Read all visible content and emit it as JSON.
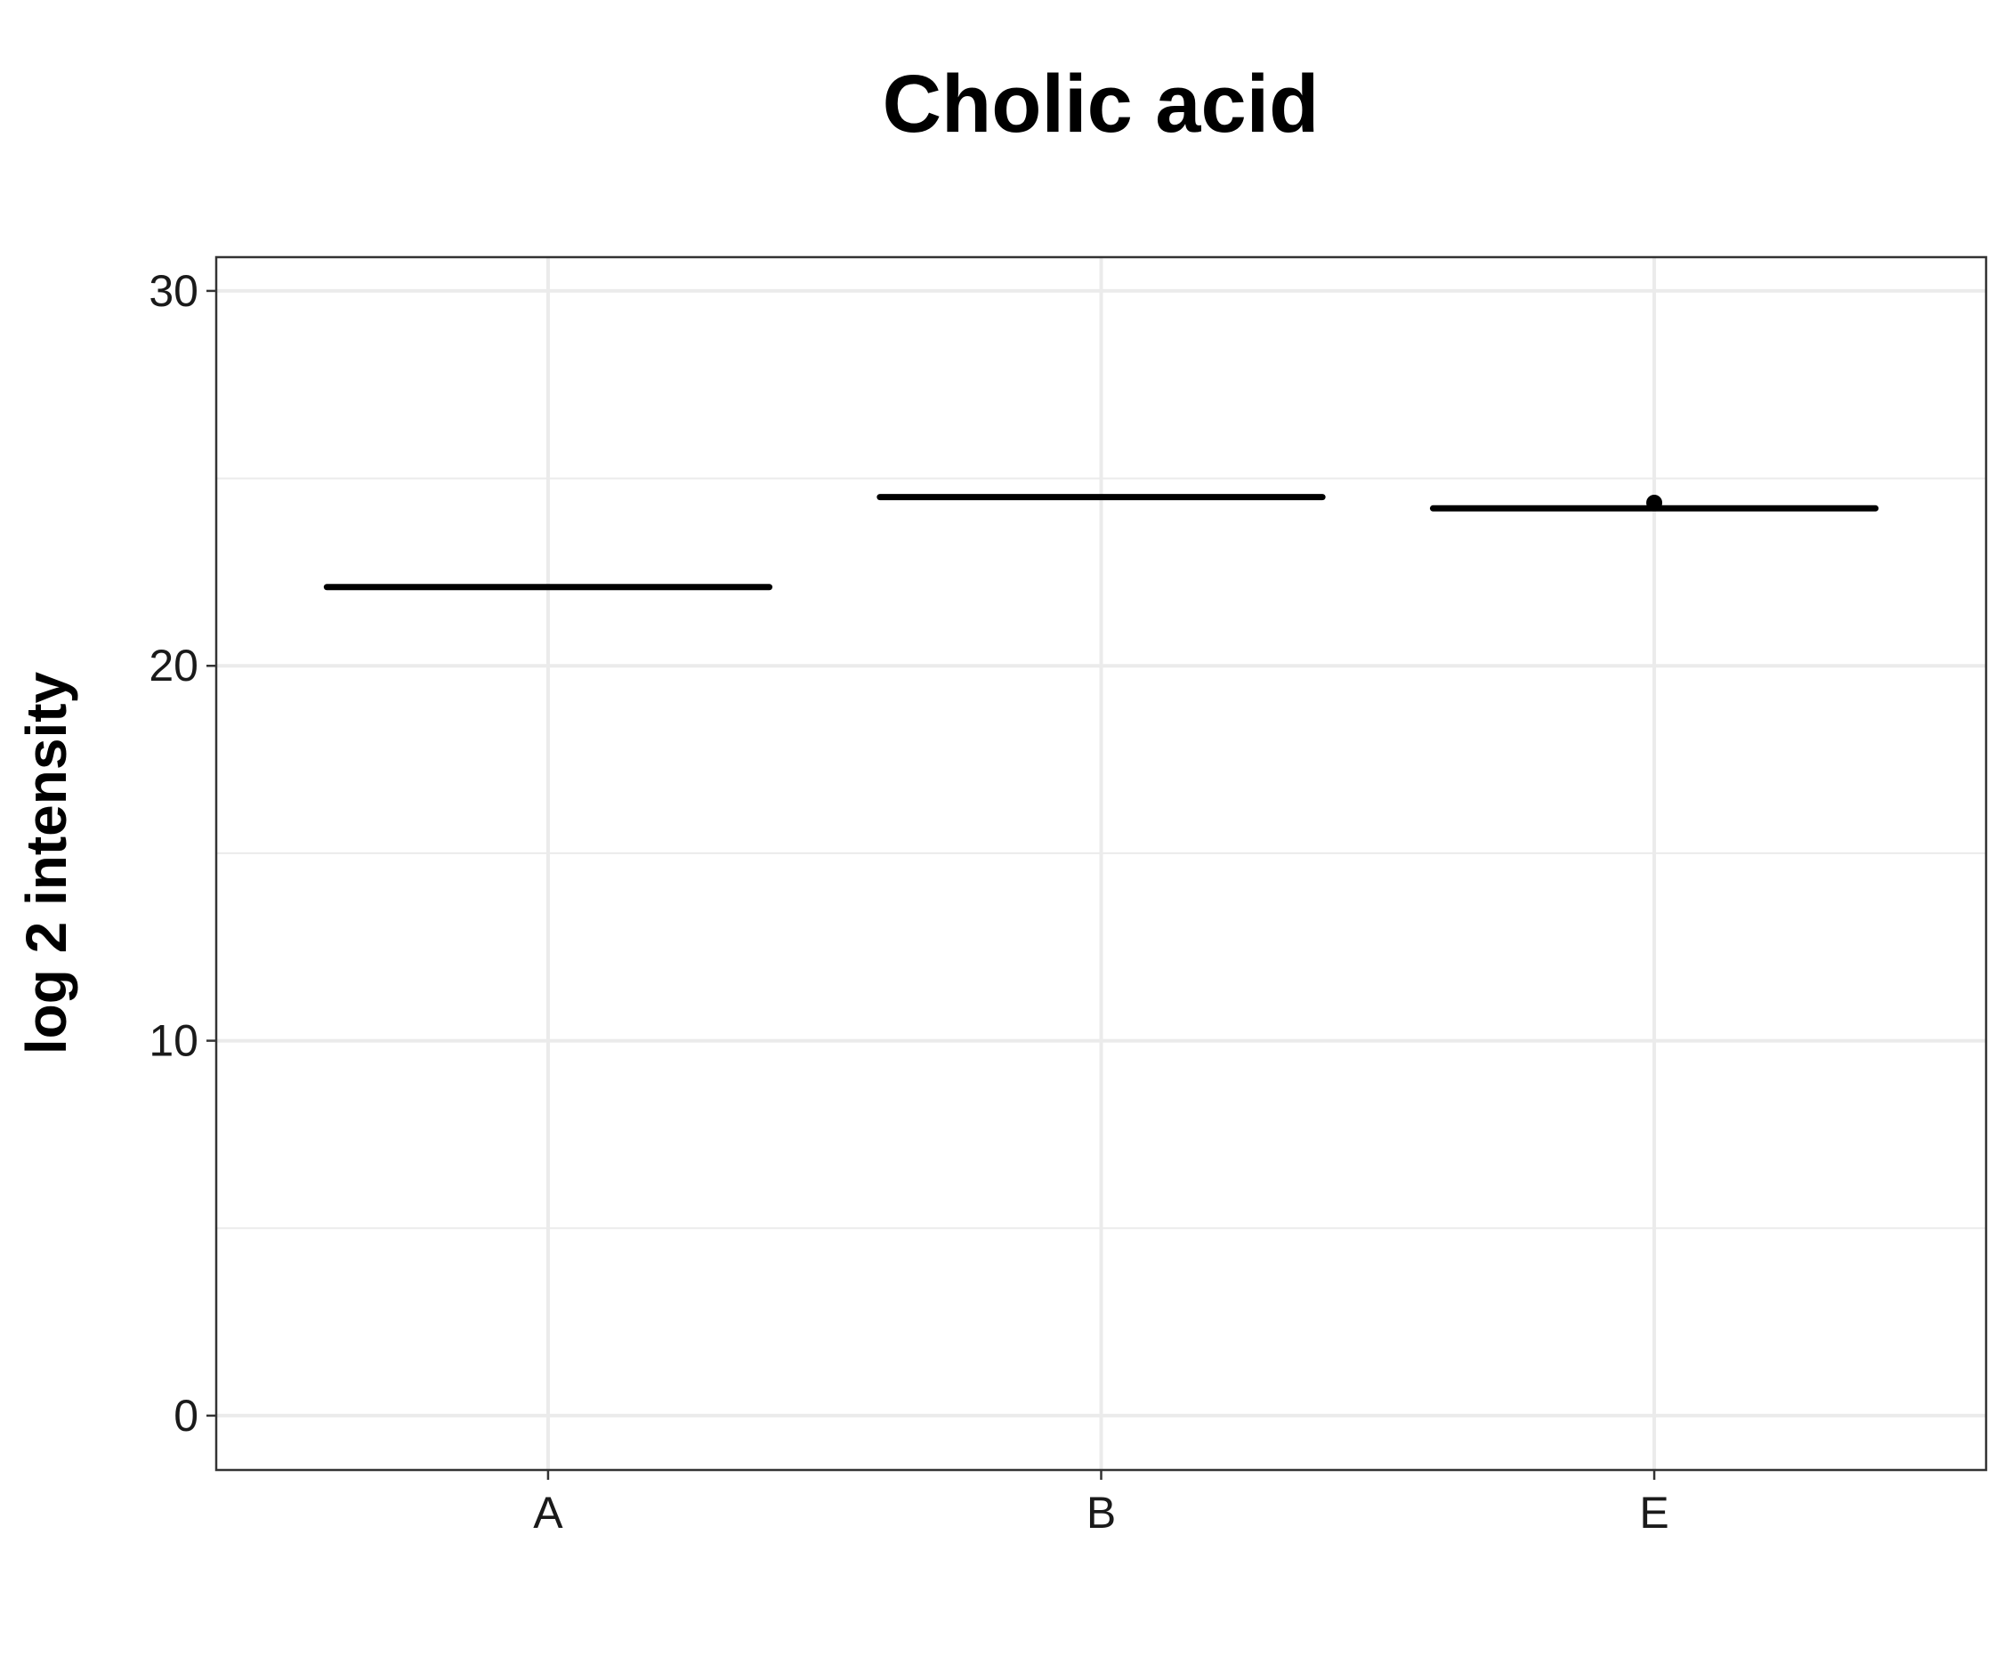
{
  "chart_data": {
    "type": "boxplot",
    "title": "Cholic acid",
    "xlabel": "",
    "ylabel": "log 2 intensity",
    "categories": [
      "A",
      "B",
      "E"
    ],
    "boxes": [
      {
        "category": "A",
        "q1": 22.1,
        "median": 22.1,
        "q3": 22.1,
        "whisker_low": 22.1,
        "whisker_high": 22.1,
        "outliers": []
      },
      {
        "category": "B",
        "q1": 24.5,
        "median": 24.5,
        "q3": 24.5,
        "whisker_low": 24.5,
        "whisker_high": 24.5,
        "outliers": []
      },
      {
        "category": "E",
        "q1": 24.2,
        "median": 24.2,
        "q3": 24.2,
        "whisker_low": 24.2,
        "whisker_high": 24.2,
        "outliers": [
          24.35
        ]
      }
    ],
    "yticks": [
      0,
      10,
      20,
      30
    ],
    "ytick_labels": [
      "0",
      "10",
      "20",
      "30"
    ],
    "ylim": [
      -1.45,
      30.9
    ],
    "grid": true,
    "legend": "none",
    "colors": {
      "box": "#000000",
      "grid": "#ebebeb",
      "panel_border": "#333333",
      "background": "#ffffff"
    }
  }
}
